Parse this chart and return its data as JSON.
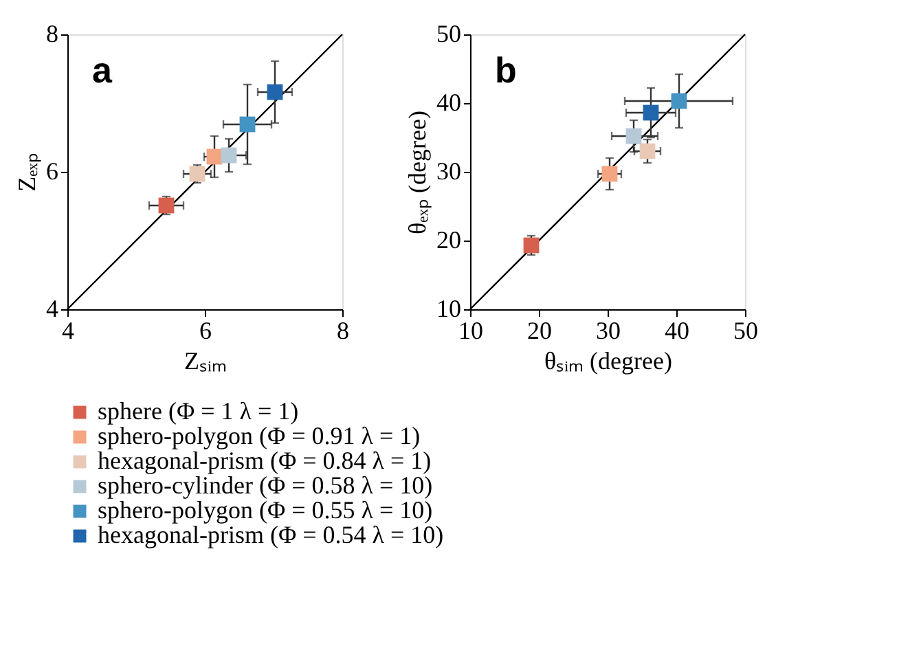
{
  "chart_data": [
    {
      "type": "scatter",
      "xlabel": "Zₛᵢₘ",
      "ylabel": "Zₑₓₚ",
      "annotations": [
        "a"
      ],
      "xlim": [
        4,
        8
      ],
      "ylim": [
        4,
        8
      ],
      "xticks": [
        4,
        6,
        8
      ],
      "yticks": [
        4,
        6,
        8
      ],
      "grid": false,
      "marker": "square",
      "legend": "bottom",
      "series": [
        {
          "name": "sphere (Φ = 1  λ = 1)",
          "color": "#d6604d",
          "x": [
            5.44
          ],
          "values": [
            5.51
          ],
          "xerrors": [
            0.25
          ],
          "errors": [
            0.13
          ]
        },
        {
          "name": "sphero-polygon (Φ = 0.91  λ = 1)",
          "color": "#f4a582",
          "x": [
            6.14
          ],
          "values": [
            6.22
          ],
          "xerrors": [
            0.15
          ],
          "errors": [
            0.3
          ]
        },
        {
          "name": "hexagonal-prism (Φ = 0.84  λ = 1)",
          "color": "#e8c9b6",
          "x": [
            5.89
          ],
          "values": [
            5.97
          ],
          "xerrors": [
            0.2
          ],
          "errors": [
            0.13
          ]
        },
        {
          "name": "sphero-cylinder (Φ = 0.58  λ = 10)",
          "color": "#b6c9d6",
          "x": [
            6.35
          ],
          "values": [
            6.24
          ],
          "xerrors": [
            0.25
          ],
          "errors": [
            0.24
          ]
        },
        {
          "name": "sphero-polygon (Φ = 0.55  λ = 10)",
          "color": "#4393c3",
          "x": [
            6.62
          ],
          "values": [
            6.69
          ],
          "xerrors": [
            0.35
          ],
          "errors": [
            0.58
          ]
        },
        {
          "name": "hexagonal-prism (Φ = 0.54  λ = 10)",
          "color": "#2166ac",
          "x": [
            7.02
          ],
          "values": [
            7.16
          ],
          "xerrors": [
            0.25
          ],
          "errors": [
            0.45
          ]
        },
        {
          "type": "line",
          "marker": "none",
          "color": "#000000",
          "x": [
            4,
            8
          ],
          "values": [
            4,
            8
          ]
        }
      ]
    },
    {
      "type": "scatter",
      "xlabel": "θₛᵢₘ (degree)",
      "ylabel": "θₑₓₚ (degree)",
      "annotations": [
        "b"
      ],
      "xlim": [
        10,
        50
      ],
      "ylim": [
        10,
        50
      ],
      "xticks": [
        10,
        20,
        30,
        40,
        50
      ],
      "yticks": [
        10,
        20,
        30,
        40,
        50
      ],
      "grid": false,
      "marker": "square",
      "series": [
        {
          "color": "#d6604d",
          "x": [
            18.9
          ],
          "values": [
            19.3
          ],
          "errors": [
            1.4
          ]
        },
        {
          "color": "#f4a582",
          "x": [
            30.3
          ],
          "values": [
            29.7
          ],
          "xerrors": [
            1.7
          ],
          "errors": [
            2.3
          ]
        },
        {
          "color": "#e8c9b6",
          "x": [
            35.8
          ],
          "values": [
            33.0
          ],
          "xerrors": [
            1.9
          ],
          "errors": [
            1.7
          ]
        },
        {
          "color": "#b6c9d6",
          "x": [
            33.8
          ],
          "values": [
            35.2
          ],
          "xerrors": [
            [
              30.6,
              37.3
            ]
          ],
          "errors": [
            2.3
          ]
        },
        {
          "color": "#4393c3",
          "x": [
            40.4
          ],
          "values": [
            40.3
          ],
          "xerrors": [
            [
              32.5,
              48.2
            ]
          ],
          "errors": [
            3.9
          ]
        },
        {
          "color": "#2166ac",
          "x": [
            36.3
          ],
          "values": [
            38.6
          ],
          "xerrors": [
            3.6
          ],
          "errors": [
            3.6
          ]
        },
        {
          "type": "line",
          "marker": "none",
          "color": "#000000",
          "x": [
            10,
            50
          ],
          "values": [
            10,
            50
          ]
        }
      ]
    }
  ]
}
